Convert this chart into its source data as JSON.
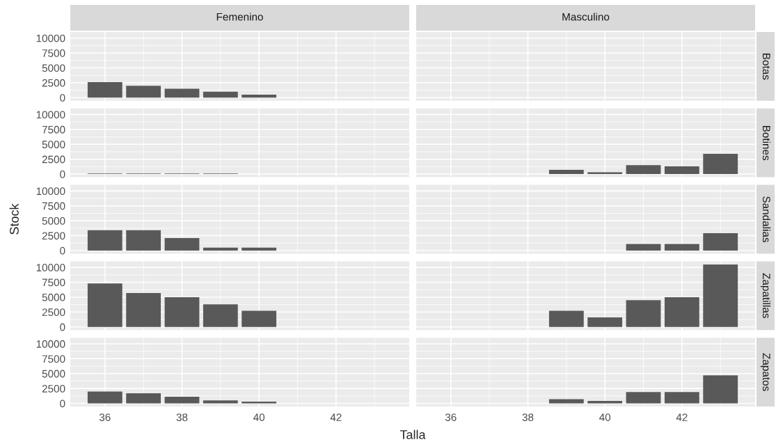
{
  "chart_data": [
    {
      "type": "bar",
      "title": "Femenino",
      "x": [
        36,
        37,
        38,
        39,
        40
      ],
      "values": [
        2600,
        2000,
        1500,
        1000,
        500
      ],
      "color": "#595959",
      "xlim": [
        35.1,
        43.9
      ],
      "xticks": [
        36,
        38,
        40,
        42
      ],
      "ylim": [
        -525,
        11025
      ],
      "yticks": [
        0,
        2500,
        5000,
        7500,
        10000
      ],
      "grid": true,
      "tick_labels": "y"
    },
    {
      "type": "bar",
      "title": "Masculino",
      "y2label": "Botas",
      "color": "#595959",
      "xlim": [
        35.1,
        43.9
      ],
      "xticks": [
        36,
        38,
        40,
        42
      ],
      "ylim": [
        -525,
        11025
      ],
      "yticks": [
        0,
        2500,
        5000,
        7500,
        10000
      ],
      "grid": true,
      "tick_labels": false
    },
    {
      "type": "bar",
      "x": [
        36,
        37,
        38,
        39
      ],
      "values": [
        100,
        100,
        100,
        100
      ],
      "color": "#595959",
      "xlim": [
        35.1,
        43.9
      ],
      "xticks": [
        36,
        38,
        40,
        42
      ],
      "ylim": [
        -525,
        11025
      ],
      "yticks": [
        0,
        2500,
        5000,
        7500,
        10000
      ],
      "grid": true,
      "tick_labels": "y"
    },
    {
      "type": "bar",
      "y2label": "Botines",
      "x": [
        39,
        40,
        41,
        42,
        43
      ],
      "values": [
        700,
        300,
        1500,
        1300,
        3400
      ],
      "color": "#595959",
      "xlim": [
        35.1,
        43.9
      ],
      "xticks": [
        36,
        38,
        40,
        42
      ],
      "ylim": [
        -525,
        11025
      ],
      "yticks": [
        0,
        2500,
        5000,
        7500,
        10000
      ],
      "grid": true,
      "tick_labels": false
    },
    {
      "type": "bar",
      "ylabel": "Stock",
      "x": [
        36,
        37,
        38,
        39,
        40
      ],
      "values": [
        3400,
        3400,
        2100,
        500,
        500
      ],
      "color": "#595959",
      "xlim": [
        35.1,
        43.9
      ],
      "xticks": [
        36,
        38,
        40,
        42
      ],
      "ylim": [
        -525,
        11025
      ],
      "yticks": [
        0,
        2500,
        5000,
        7500,
        10000
      ],
      "grid": true,
      "tick_labels": "y"
    },
    {
      "type": "bar",
      "y2label": "Sandalias",
      "x": [
        41,
        42,
        43
      ],
      "values": [
        1100,
        1100,
        2900
      ],
      "color": "#595959",
      "xlim": [
        35.1,
        43.9
      ],
      "xticks": [
        36,
        38,
        40,
        42
      ],
      "ylim": [
        -525,
        11025
      ],
      "yticks": [
        0,
        2500,
        5000,
        7500,
        10000
      ],
      "grid": true,
      "tick_labels": false
    },
    {
      "type": "bar",
      "x": [
        36,
        37,
        38,
        39,
        40
      ],
      "values": [
        7300,
        5700,
        5000,
        3800,
        2700
      ],
      "color": "#595959",
      "xlim": [
        35.1,
        43.9
      ],
      "xticks": [
        36,
        38,
        40,
        42
      ],
      "ylim": [
        -525,
        11025
      ],
      "yticks": [
        0,
        2500,
        5000,
        7500,
        10000
      ],
      "grid": true,
      "tick_labels": "y"
    },
    {
      "type": "bar",
      "y2label": "Zapatillas",
      "x": [
        39,
        40,
        41,
        42,
        43
      ],
      "values": [
        2700,
        1600,
        4500,
        5000,
        10500
      ],
      "color": "#595959",
      "xlim": [
        35.1,
        43.9
      ],
      "xticks": [
        36,
        38,
        40,
        42
      ],
      "ylim": [
        -525,
        11025
      ],
      "yticks": [
        0,
        2500,
        5000,
        7500,
        10000
      ],
      "grid": true,
      "tick_labels": false
    },
    {
      "type": "bar",
      "xlabel": "Talla",
      "x": [
        36,
        37,
        38,
        39,
        40
      ],
      "values": [
        2000,
        1700,
        1100,
        500,
        300
      ],
      "color": "#595959",
      "xlim": [
        35.1,
        43.9
      ],
      "xticks": [
        36,
        38,
        40,
        42
      ],
      "ylim": [
        -525,
        11025
      ],
      "yticks": [
        0,
        2500,
        5000,
        7500,
        10000
      ],
      "grid": true
    },
    {
      "type": "bar",
      "y2label": "Zapatos",
      "x": [
        39,
        40,
        41,
        42,
        43
      ],
      "values": [
        700,
        400,
        1900,
        1900,
        4700
      ],
      "color": "#595959",
      "xlim": [
        35.1,
        43.9
      ],
      "xticks": [
        36,
        38,
        40,
        42
      ],
      "ylim": [
        -525,
        11025
      ],
      "yticks": [
        0,
        2500,
        5000,
        7500,
        10000
      ],
      "grid": true,
      "tick_labels": "x"
    }
  ]
}
